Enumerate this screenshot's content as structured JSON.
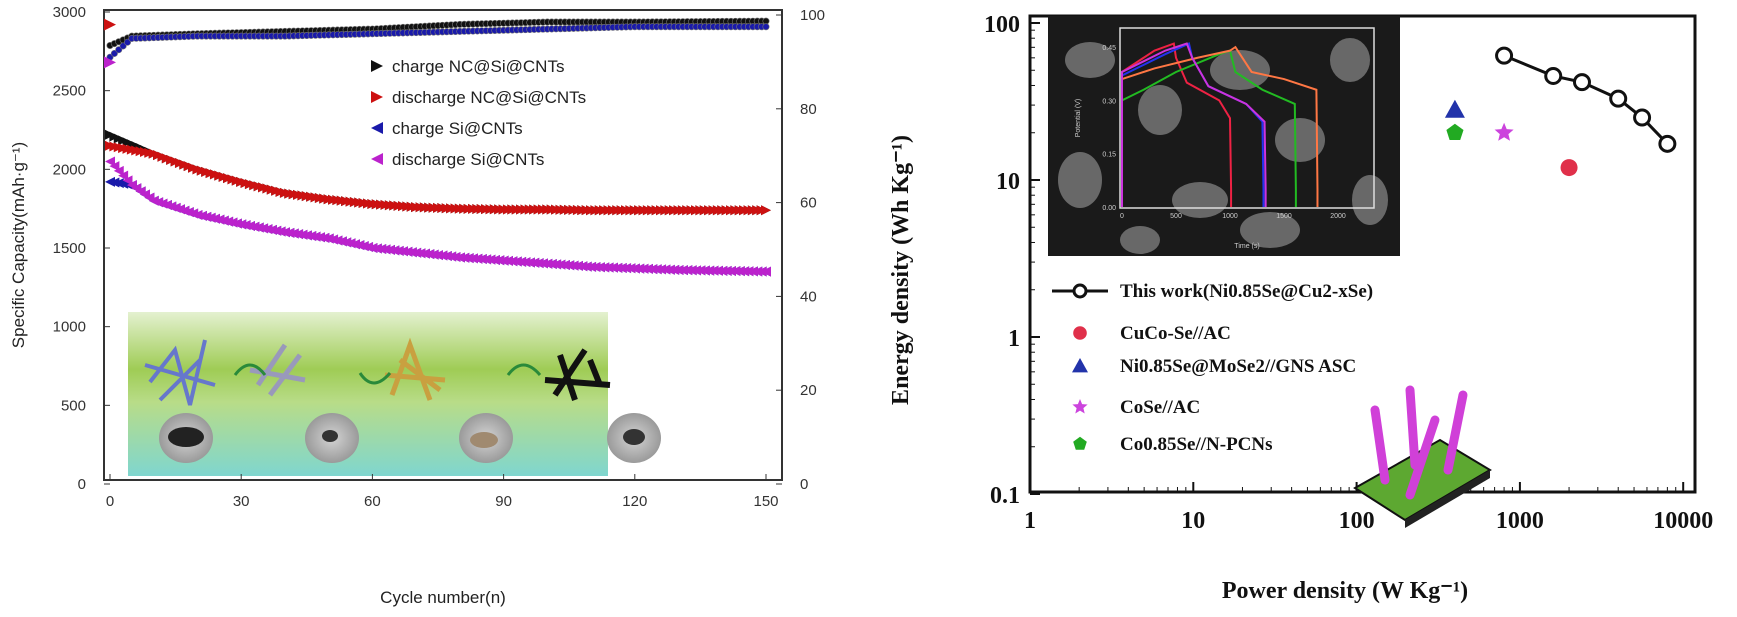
{
  "chart_data": [
    {
      "type": "scatter",
      "xlabel": "Cycle number(n)",
      "ylabel": "Specific Capacity(mAh·g⁻¹)",
      "y2label": "",
      "xlim": [
        0,
        150
      ],
      "ylim": [
        0,
        3000
      ],
      "y2lim": [
        0,
        100
      ],
      "xticks": [
        "0",
        "30",
        "60",
        "90",
        "120",
        "150"
      ],
      "yticks": [
        "0",
        "500",
        "1000",
        "1500",
        "2000",
        "2500",
        "3000"
      ],
      "y2ticks": [
        "0",
        "20",
        "40",
        "60",
        "80",
        "100"
      ],
      "legend_position": "top-right",
      "series": [
        {
          "name": "charge NC@Si@CNTs",
          "color": "#111111",
          "marker": "triangle-right",
          "axis": "left",
          "x": [
            0,
            10,
            20,
            30,
            40,
            50,
            60,
            70,
            80,
            90,
            100,
            110,
            120,
            130,
            140,
            150
          ],
          "y": [
            2220,
            2100,
            2000,
            1920,
            1850,
            1810,
            1780,
            1760,
            1750,
            1745,
            1745,
            1740,
            1740,
            1740,
            1740,
            1740
          ]
        },
        {
          "name": "discharge NC@Si@CNTs",
          "color": "#cc1111",
          "marker": "triangle-right",
          "axis": "left",
          "x": [
            0,
            10,
            20,
            30,
            40,
            50,
            60,
            70,
            80,
            90,
            100,
            110,
            120,
            130,
            140,
            150
          ],
          "y": [
            2150,
            2100,
            2000,
            1920,
            1850,
            1810,
            1780,
            1760,
            1750,
            1745,
            1745,
            1740,
            1740,
            1740,
            1740,
            1740
          ]
        },
        {
          "name": "charge Si@CNTs",
          "color": "#1a1aaa",
          "marker": "triangle-left",
          "axis": "left",
          "x": [
            0,
            5,
            10,
            20,
            30,
            40,
            50,
            60,
            70,
            80,
            90,
            100,
            110,
            120,
            130,
            140,
            150
          ],
          "y": [
            1920,
            1900,
            1800,
            1710,
            1650,
            1600,
            1560,
            1500,
            1470,
            1440,
            1420,
            1400,
            1380,
            1370,
            1360,
            1355,
            1350
          ]
        },
        {
          "name": "discharge Si@CNTs",
          "color": "#bb22cc",
          "marker": "triangle-left",
          "axis": "left",
          "x": [
            0,
            5,
            10,
            20,
            30,
            40,
            50,
            60,
            70,
            80,
            90,
            100,
            110,
            120,
            130,
            140,
            150
          ],
          "y": [
            2050,
            1900,
            1800,
            1710,
            1650,
            1600,
            1560,
            1500,
            1470,
            1440,
            1420,
            1400,
            1380,
            1370,
            1360,
            1355,
            1350
          ]
        },
        {
          "name": "",
          "color": "#111111",
          "marker": "circle",
          "axis": "right",
          "x": [
            0,
            5,
            20,
            40,
            60,
            80,
            100,
            120,
            150
          ],
          "y": [
            93.5,
            95.5,
            96,
            96.5,
            97,
            98,
            98.5,
            98.5,
            98.7
          ]
        },
        {
          "name": "",
          "color": "#1a1aaa",
          "marker": "circle",
          "axis": "right",
          "x": [
            0,
            5,
            20,
            40,
            60,
            80,
            100,
            120,
            150
          ],
          "y": [
            91,
            95,
            95.5,
            95.5,
            96,
            96.5,
            97,
            97.5,
            97.5
          ]
        }
      ],
      "first_points": [
        {
          "color": "#cc1111",
          "x": 0,
          "y": 2920
        },
        {
          "color": "#bb22cc",
          "x": 0,
          "y": 2680
        }
      ]
    },
    {
      "type": "scatter",
      "xlabel": "Power density (W Kg⁻¹)",
      "ylabel": "Energy density (Wh Kg⁻¹)",
      "xscale": "log",
      "yscale": "log",
      "xlim": [
        1,
        10000
      ],
      "ylim": [
        0.1,
        100
      ],
      "xticks": [
        "1",
        "10",
        "100",
        "1000",
        "10000"
      ],
      "yticks": [
        "0.1",
        "1",
        "10",
        "100"
      ],
      "legend_position": "bottom-left",
      "series": [
        {
          "name": "This work(Ni0.85Se@Cu2-xSe)",
          "color": "#111111",
          "marker": "open-circle-line",
          "x": [
            800,
            1600,
            2400,
            4000,
            5600,
            8000
          ],
          "y": [
            62,
            46,
            42,
            33,
            25,
            17
          ]
        },
        {
          "name": "CuCo-Se//AC",
          "color": "#e0304a",
          "marker": "circle",
          "x": [
            2000
          ],
          "y": [
            12
          ]
        },
        {
          "name": "Ni0.85Se@MoSe2//GNS ASC",
          "color": "#2233aa",
          "marker": "triangle",
          "x": [
            400
          ],
          "y": [
            28
          ]
        },
        {
          "name": "CoSe//AC",
          "color": "#cc44dd",
          "marker": "star",
          "x": [
            800
          ],
          "y": [
            20
          ]
        },
        {
          "name": "Co0.85Se//N-PCNs",
          "color": "#22aa22",
          "marker": "pentagon",
          "x": [
            400
          ],
          "y": [
            20
          ]
        }
      ],
      "inset": {
        "xlabel": "Time (s)",
        "ylabel": "Potential (V)",
        "xlim": [
          0,
          2300
        ],
        "ylim": [
          0,
          0.5
        ],
        "xticks": [
          "0",
          "500",
          "1000",
          "1500",
          "2000"
        ],
        "yticks": [
          "0.00",
          "0.15",
          "0.30",
          "0.45"
        ],
        "curves": [
          {
            "color": "#ee2244",
            "x": [
              0,
              0,
              100,
              300,
              480,
              500,
              600,
              900,
              1000,
              1010,
              1010
            ],
            "y": [
              0,
              0.38,
              0.4,
              0.44,
              0.46,
              0.42,
              0.35,
              0.3,
              0.25,
              0.05,
              0
            ]
          },
          {
            "color": "#2233ee",
            "x": [
              0,
              0,
              200,
              400,
              620,
              650,
              800,
              1150,
              1300,
              1310,
              1310
            ],
            "y": [
              0,
              0.37,
              0.4,
              0.43,
              0.46,
              0.42,
              0.34,
              0.29,
              0.24,
              0.05,
              0
            ]
          },
          {
            "color": "#22bb22",
            "x": [
              0,
              0,
              200,
              500,
              900,
              1000,
              1050,
              1300,
              1600,
              1610,
              1610
            ],
            "y": [
              0,
              0.3,
              0.33,
              0.38,
              0.43,
              0.44,
              0.38,
              0.33,
              0.29,
              0.05,
              0
            ]
          },
          {
            "color": "#ff7744",
            "x": [
              0,
              0,
              300,
              700,
              1000,
              1050,
              1200,
              1500,
              1800,
              1810,
              1810
            ],
            "y": [
              0,
              0.36,
              0.39,
              0.42,
              0.44,
              0.45,
              0.38,
              0.36,
              0.33,
              0.05,
              0
            ]
          },
          {
            "color": "#cc33dd",
            "x": [
              0,
              0,
              200,
              400,
              600,
              650,
              800,
              1150,
              1320,
              1330,
              1330
            ],
            "y": [
              0,
              0.38,
              0.41,
              0.44,
              0.46,
              0.42,
              0.34,
              0.29,
              0.24,
              0.05,
              0
            ]
          }
        ]
      }
    }
  ]
}
